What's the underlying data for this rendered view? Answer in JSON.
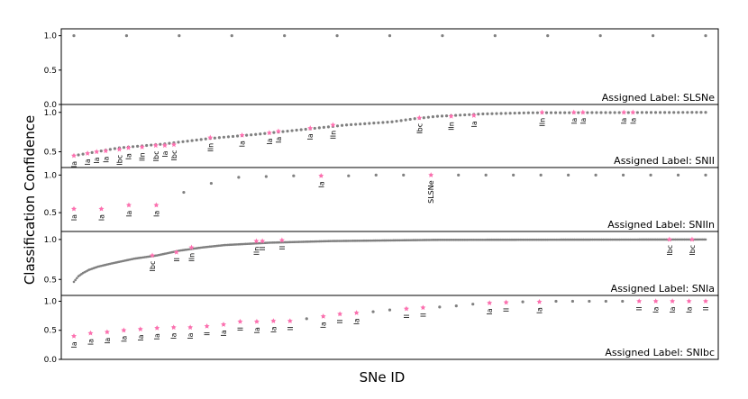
{
  "colors": {
    "point": "#808080",
    "star": "#ff6fb0",
    "frame": "#000000"
  },
  "chart_data": {
    "type": "scatter",
    "xlabel": "SNe ID",
    "ylabel": "Classification Confidence",
    "grid": false,
    "legend": "none",
    "panels": [
      {
        "label": "Assigned Label: SLSNe",
        "yticks": [
          "1.0",
          "0.5",
          "0.0"
        ],
        "ylim": [
          0,
          1.1
        ],
        "n_points": 13,
        "points": [
          1,
          1,
          1,
          1,
          1,
          1,
          1,
          1,
          1,
          1,
          1,
          1,
          1
        ],
        "stars": []
      },
      {
        "label": "Assigned Label: SNII",
        "yticks": [
          "1.0",
          "0.5"
        ],
        "ylim": [
          0.3,
          1.1
        ],
        "n_points": 140,
        "curve": [
          [
            0,
            0.45
          ],
          [
            10,
            0.55
          ],
          [
            20,
            0.6
          ],
          [
            30,
            0.67
          ],
          [
            40,
            0.72
          ],
          [
            50,
            0.78
          ],
          [
            60,
            0.84
          ],
          [
            70,
            0.88
          ],
          [
            75,
            0.92
          ],
          [
            80,
            0.95
          ],
          [
            90,
            0.98
          ],
          [
            100,
            0.995
          ],
          [
            139,
            1.0
          ]
        ],
        "stars": [
          {
            "i": 0,
            "y": 0.45,
            "label": "Ia"
          },
          {
            "i": 3,
            "y": 0.48,
            "label": "Ia"
          },
          {
            "i": 5,
            "y": 0.5,
            "label": "Ia"
          },
          {
            "i": 7,
            "y": 0.51,
            "label": "Ia"
          },
          {
            "i": 10,
            "y": 0.53,
            "label": "Ibc"
          },
          {
            "i": 12,
            "y": 0.55,
            "label": "Ia"
          },
          {
            "i": 15,
            "y": 0.56,
            "label": "IIn"
          },
          {
            "i": 18,
            "y": 0.58,
            "label": "Ibc"
          },
          {
            "i": 20,
            "y": 0.58,
            "label": "Ia"
          },
          {
            "i": 22,
            "y": 0.59,
            "label": "Ibc"
          },
          {
            "i": 30,
            "y": 0.68,
            "label": "IIn"
          },
          {
            "i": 37,
            "y": 0.71,
            "label": "Ia"
          },
          {
            "i": 43,
            "y": 0.74,
            "label": "Ia"
          },
          {
            "i": 45,
            "y": 0.76,
            "label": "Ia"
          },
          {
            "i": 52,
            "y": 0.8,
            "label": "Ia"
          },
          {
            "i": 57,
            "y": 0.84,
            "label": "IIn"
          },
          {
            "i": 76,
            "y": 0.93,
            "label": "Ibc"
          },
          {
            "i": 83,
            "y": 0.95,
            "label": "IIn"
          },
          {
            "i": 88,
            "y": 0.96,
            "label": "Ia"
          },
          {
            "i": 103,
            "y": 1.0,
            "label": "IIn"
          },
          {
            "i": 110,
            "y": 1.0,
            "label": "Ia"
          },
          {
            "i": 112,
            "y": 1.0,
            "label": "Ia"
          },
          {
            "i": 121,
            "y": 1.0,
            "label": "Ia"
          },
          {
            "i": 123,
            "y": 1.0,
            "label": "Ia"
          }
        ]
      },
      {
        "label": "Assigned Label: SNIIn",
        "yticks": [
          "1.0",
          "0.5"
        ],
        "ylim": [
          0.25,
          1.1
        ],
        "n_points": 24,
        "points": [
          0.55,
          0.55,
          0.6,
          0.6,
          0.77,
          0.89,
          0.97,
          0.98,
          0.99,
          0.99,
          0.99,
          1,
          1,
          1,
          1,
          1,
          1,
          1,
          1,
          1,
          1,
          1,
          1,
          1
        ],
        "stars": [
          {
            "i": 0,
            "y": 0.55,
            "label": "Ia"
          },
          {
            "i": 1,
            "y": 0.55,
            "label": "Ia"
          },
          {
            "i": 2,
            "y": 0.6,
            "label": "Ia"
          },
          {
            "i": 3,
            "y": 0.6,
            "label": "Ia"
          },
          {
            "i": 9,
            "y": 0.99,
            "label": "Ia"
          },
          {
            "i": 13,
            "y": 1.0,
            "label": "SLSNe"
          }
        ]
      },
      {
        "label": "Assigned Label: SNIa",
        "yticks": [
          "1.0",
          "0.5"
        ],
        "ylim": [
          0.3,
          1.1
        ],
        "n_points": 420,
        "curve": [
          [
            0,
            0.47
          ],
          [
            3,
            0.54
          ],
          [
            6,
            0.58
          ],
          [
            10,
            0.62
          ],
          [
            16,
            0.66
          ],
          [
            25,
            0.7
          ],
          [
            40,
            0.76
          ],
          [
            55,
            0.8
          ],
          [
            70,
            0.86
          ],
          [
            85,
            0.9
          ],
          [
            100,
            0.93
          ],
          [
            130,
            0.96
          ],
          [
            170,
            0.98
          ],
          [
            240,
            0.995
          ],
          [
            419,
            1.0
          ]
        ],
        "stars": [
          {
            "i": 52,
            "y": 0.8,
            "label": "Ibc"
          },
          {
            "i": 68,
            "y": 0.84,
            "label": "II"
          },
          {
            "i": 78,
            "y": 0.9,
            "label": "IIn"
          },
          {
            "i": 121,
            "y": 0.98,
            "label": "IIn"
          },
          {
            "i": 125,
            "y": 0.98,
            "label": "II"
          },
          {
            "i": 138,
            "y": 0.99,
            "label": "II"
          },
          {
            "i": 395,
            "y": 1.0,
            "label": "Ibc"
          },
          {
            "i": 410,
            "y": 1.0,
            "label": "Ibc"
          }
        ]
      },
      {
        "label": "Assigned Label: SNIbc",
        "yticks": [
          "1.0",
          "0.5",
          "0.0"
        ],
        "ylim": [
          0,
          1.1
        ],
        "n_points": 39,
        "points": [
          0.4,
          0.45,
          0.47,
          0.5,
          0.52,
          0.54,
          0.55,
          0.55,
          0.57,
          0.6,
          0.65,
          0.65,
          0.66,
          0.66,
          0.7,
          0.74,
          0.78,
          0.8,
          0.82,
          0.85,
          0.87,
          0.89,
          0.9,
          0.92,
          0.95,
          0.97,
          0.98,
          0.99,
          0.99,
          1,
          1,
          1,
          1,
          1,
          1,
          1,
          1,
          1,
          1
        ],
        "stars": [
          {
            "i": 0,
            "y": 0.4,
            "label": "Ia"
          },
          {
            "i": 1,
            "y": 0.45,
            "label": "Ia"
          },
          {
            "i": 2,
            "y": 0.47,
            "label": "Ia"
          },
          {
            "i": 3,
            "y": 0.5,
            "label": "Ia"
          },
          {
            "i": 4,
            "y": 0.52,
            "label": "Ia"
          },
          {
            "i": 5,
            "y": 0.54,
            "label": "Ia"
          },
          {
            "i": 6,
            "y": 0.55,
            "label": "Ia"
          },
          {
            "i": 7,
            "y": 0.55,
            "label": "Ia"
          },
          {
            "i": 8,
            "y": 0.57,
            "label": "II"
          },
          {
            "i": 9,
            "y": 0.6,
            "label": "Ia"
          },
          {
            "i": 10,
            "y": 0.65,
            "label": "II"
          },
          {
            "i": 11,
            "y": 0.65,
            "label": "Ia"
          },
          {
            "i": 12,
            "y": 0.66,
            "label": "Ia"
          },
          {
            "i": 13,
            "y": 0.66,
            "label": "II"
          },
          {
            "i": 15,
            "y": 0.74,
            "label": "Ia"
          },
          {
            "i": 16,
            "y": 0.78,
            "label": "II"
          },
          {
            "i": 17,
            "y": 0.8,
            "label": "Ia"
          },
          {
            "i": 20,
            "y": 0.87,
            "label": "II"
          },
          {
            "i": 21,
            "y": 0.89,
            "label": "II"
          },
          {
            "i": 25,
            "y": 0.97,
            "label": "Ia"
          },
          {
            "i": 26,
            "y": 0.98,
            "label": "II"
          },
          {
            "i": 28,
            "y": 0.99,
            "label": "Ia"
          },
          {
            "i": 34,
            "y": 1.0,
            "label": "II"
          },
          {
            "i": 35,
            "y": 1.0,
            "label": "Ia"
          },
          {
            "i": 36,
            "y": 1.0,
            "label": "Ia"
          },
          {
            "i": 37,
            "y": 1.0,
            "label": "Ia"
          },
          {
            "i": 38,
            "y": 1.0,
            "label": "II"
          }
        ]
      }
    ]
  }
}
